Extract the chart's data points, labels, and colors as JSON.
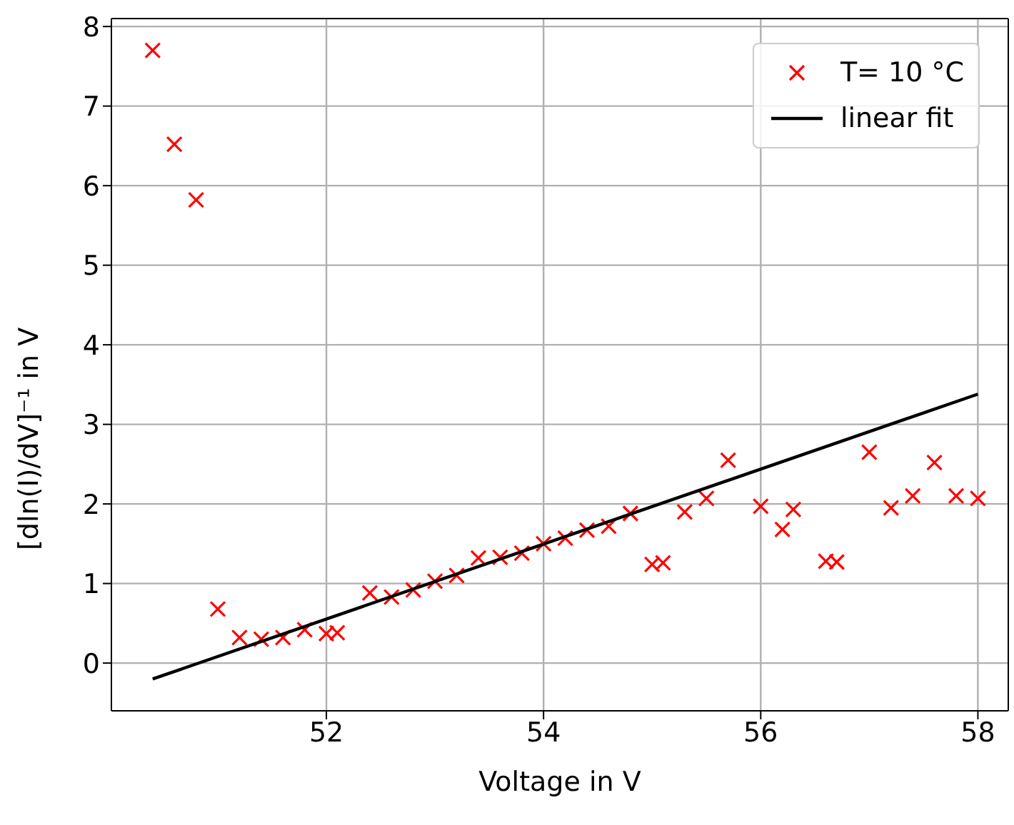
{
  "chart_data": {
    "type": "scatter",
    "xlabel": "Voltage in V",
    "ylabel": "[dln(I)/dV]⁻¹ in V",
    "xlim": [
      50.02,
      58.28
    ],
    "ylim": [
      -0.6,
      8.1
    ],
    "xticks": [
      52,
      54,
      56,
      58
    ],
    "yticks": [
      0,
      1,
      2,
      3,
      4,
      5,
      6,
      7,
      8
    ],
    "grid": true,
    "legend": "top right",
    "series": [
      {
        "name": "T= 10 °C",
        "type": "scatter",
        "marker": "cross",
        "color": "#ff0000",
        "x": [
          50.4,
          50.6,
          50.8,
          51.0,
          51.2,
          51.4,
          51.6,
          51.8,
          52.0,
          52.1,
          52.4,
          52.6,
          52.8,
          53.0,
          53.2,
          53.4,
          53.6,
          53.8,
          54.0,
          54.2,
          54.4,
          54.6,
          54.8,
          55.0,
          55.1,
          55.3,
          55.5,
          55.7,
          56.0,
          56.2,
          56.3,
          56.6,
          56.7,
          57.0,
          57.2,
          57.4,
          57.6,
          57.8,
          58.0
        ],
        "values": [
          7.7,
          6.52,
          5.82,
          0.68,
          0.32,
          0.3,
          0.32,
          0.42,
          0.37,
          0.38,
          0.88,
          0.83,
          0.92,
          1.03,
          1.1,
          1.32,
          1.33,
          1.38,
          1.5,
          1.57,
          1.67,
          1.72,
          1.88,
          1.24,
          1.26,
          1.9,
          2.07,
          2.55,
          1.97,
          1.68,
          1.93,
          1.28,
          1.27,
          2.65,
          1.95,
          2.1,
          2.52,
          2.1,
          2.07
        ]
      },
      {
        "name": "linear fit",
        "type": "line",
        "marker": "none",
        "line_style": "solid",
        "color": "#000000",
        "x": [
          50.4,
          58.0
        ],
        "values": [
          -0.2,
          3.38
        ]
      }
    ]
  }
}
